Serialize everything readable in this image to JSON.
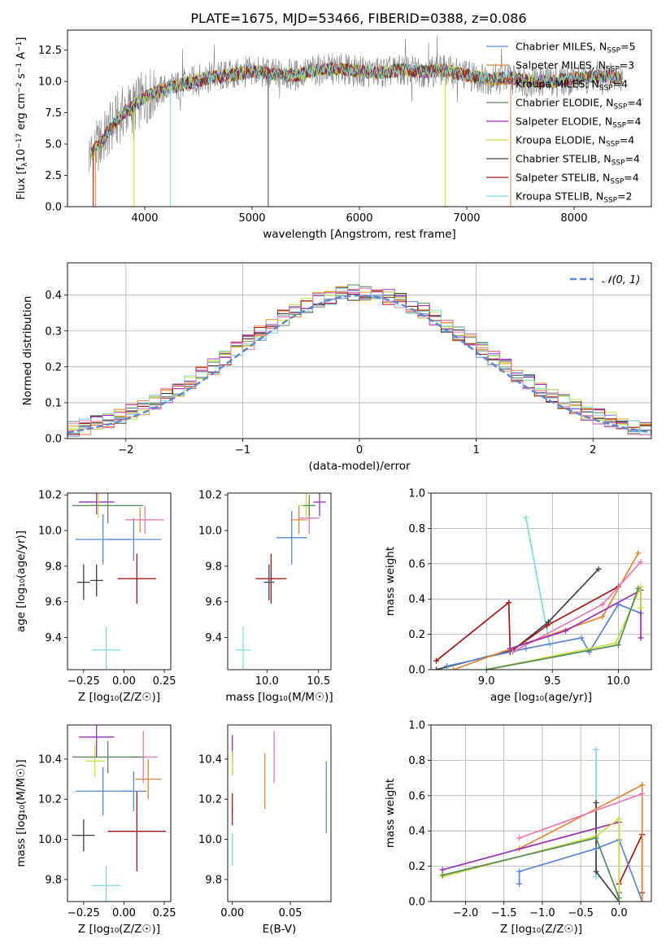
{
  "figure": {
    "title": "PLATE=1675, MJD=53466, FIBERID=0388, z=0.086"
  },
  "colors": {
    "chabrier_miles": "#5b86d6",
    "salpeter_miles": "#e6863a",
    "kroupa_miles": "#e0a020",
    "chabrier_elodie": "#5a8a5a",
    "salpeter_elodie": "#9b30b8",
    "kroupa_elodie": "#c8e040",
    "chabrier_stelib": "#404040",
    "salpeter_stelib": "#a01818",
    "kroupa_stelib": "#7fdada",
    "data": "#808080",
    "pink": "#e87ab8",
    "normal": "#5b86d6"
  },
  "chart_data": [
    {
      "id": "spectrum",
      "type": "line",
      "xlabel": "wavelength [Angstrom, rest frame]",
      "ylabel_parts": {
        "base": "Flux [f",
        "sub": "λ",
        "mid": "10",
        "sup1": "−17",
        "rest": " erg cm",
        "sup2": "−2",
        "s": " s",
        "sup3": "−1",
        "a": " A",
        "sup4": "−1",
        "end": "]"
      },
      "xlim": [
        3280,
        8720
      ],
      "ylim": [
        0,
        14.1
      ],
      "xticks": [
        4000,
        5000,
        6000,
        7000,
        8000
      ],
      "yticks": [
        0.0,
        2.5,
        5.0,
        7.5,
        10.0,
        12.5
      ],
      "ytick_labels": [
        "0.0",
        "2.5",
        "5.0",
        "7.5",
        "10.0",
        "12.5"
      ],
      "continuum": [
        [
          3500,
          4.2
        ],
        [
          3600,
          5.2
        ],
        [
          3700,
          6.5
        ],
        [
          3800,
          7.5
        ],
        [
          3900,
          8.0
        ],
        [
          4000,
          8.8
        ],
        [
          4200,
          9.4
        ],
        [
          4400,
          9.9
        ],
        [
          4600,
          10.3
        ],
        [
          4800,
          10.5
        ],
        [
          5000,
          10.8
        ],
        [
          5200,
          10.6
        ],
        [
          5400,
          10.5
        ],
        [
          5600,
          10.9
        ],
        [
          5800,
          11.0
        ],
        [
          6000,
          10.8
        ],
        [
          6200,
          10.7
        ],
        [
          6400,
          10.9
        ],
        [
          6600,
          10.8
        ],
        [
          6800,
          10.9
        ],
        [
          7000,
          10.5
        ],
        [
          7200,
          10.2
        ],
        [
          7400,
          10.3
        ],
        [
          7600,
          10.0
        ],
        [
          7800,
          10.0
        ],
        [
          8000,
          10.2
        ],
        [
          8200,
          10.4
        ],
        [
          8400,
          10.3
        ]
      ],
      "legend": [
        {
          "label": "Chabrier MILES, N",
          "sub": "SSP",
          "tail": "=5",
          "color": "#5b86d6"
        },
        {
          "label": "Salpeter MILES, N",
          "sub": "SSP",
          "tail": "=3",
          "color": "#e6863a"
        },
        {
          "label": "Kroupa MILES, N",
          "sub": "SSP",
          "tail": "=4",
          "color": "#e0a020"
        },
        {
          "label": "Chabrier ELODIE, N",
          "sub": "SSP",
          "tail": "=4",
          "color": "#5a8a5a"
        },
        {
          "label": "Salpeter ELODIE, N",
          "sub": "SSP",
          "tail": "=4",
          "color": "#9b30b8"
        },
        {
          "label": "Kroupa ELODIE, N",
          "sub": "SSP",
          "tail": "=4",
          "color": "#c8e040"
        },
        {
          "label": "Chabrier STELIB, N",
          "sub": "SSP",
          "tail": "=4",
          "color": "#404040"
        },
        {
          "label": "Salpeter STELIB, N",
          "sub": "SSP",
          "tail": "=4",
          "color": "#a01818"
        },
        {
          "label": "Kroupa STELIB, N",
          "sub": "SSP",
          "tail": "=2",
          "color": "#7fdada"
        }
      ],
      "legend_placement": "upper right"
    },
    {
      "id": "residuals",
      "type": "histogram",
      "xlabel": "(data-model)/error",
      "ylabel": "Normed distribution",
      "xlim": [
        -2.5,
        2.5
      ],
      "ylim": [
        0,
        0.49
      ],
      "xticks": [
        -2,
        -1,
        0,
        1,
        2
      ],
      "xtick_labels": [
        "−2",
        "−1",
        "0",
        "1",
        "2"
      ],
      "yticks": [
        0.0,
        0.1,
        0.2,
        0.3,
        0.4
      ],
      "ytick_labels": [
        "0.0",
        "0.1",
        "0.2",
        "0.3",
        "0.4"
      ],
      "grid": true,
      "bin_width": 0.1,
      "legend": [
        {
          "label": "𝒩(0, 1)",
          "color": "#5b86d6",
          "style": "dashed"
        }
      ],
      "legend_placement": "upper right"
    },
    {
      "id": "age_vs_Z",
      "type": "errorbar",
      "xlabel": "Z [log₁₀(Z/Z☉)]",
      "ylabel": "age  [log₁₀(age/yr)]",
      "xlim": [
        -0.35,
        0.29
      ],
      "ylim": [
        9.22,
        10.21
      ],
      "xticks": [
        -0.25,
        0.0,
        0.25
      ],
      "xtick_labels": [
        "−0.25",
        "0.00",
        "0.25"
      ],
      "yticks": [
        9.4,
        9.6,
        9.8,
        10.0,
        10.2
      ],
      "ytick_labels": [
        "9.4",
        "9.6",
        "9.8",
        "10.0",
        "10.2"
      ],
      "points": [
        {
          "x": 0.08,
          "y": 9.73,
          "xerr": 0.12,
          "yerr": 0.14,
          "color": "#a01818"
        },
        {
          "x": -0.25,
          "y": 9.71,
          "xerr": 0.04,
          "yerr": 0.1,
          "color": "#404040"
        },
        {
          "x": -0.17,
          "y": 9.72,
          "xerr": 0.04,
          "yerr": 0.09,
          "color": "#404040"
        },
        {
          "x": -0.11,
          "y": 9.33,
          "xerr": 0.09,
          "yerr": 0.13,
          "color": "#7fdada"
        },
        {
          "x": -0.13,
          "y": 9.95,
          "xerr": 0.17,
          "yerr": 0.14,
          "color": "#5b86d6"
        },
        {
          "x": 0.06,
          "y": 9.95,
          "xerr": 0.17,
          "yerr": 0.12,
          "color": "#5b86d6"
        },
        {
          "x": 0.1,
          "y": 10.06,
          "xerr": 0.09,
          "yerr": 0.07,
          "color": "#e6863a"
        },
        {
          "x": 0.13,
          "y": 10.06,
          "xerr": 0.12,
          "yerr": 0.08,
          "color": "#e87ab8"
        },
        {
          "x": -0.17,
          "y": 10.16,
          "xerr": 0.11,
          "yerr": 0.07,
          "color": "#9b30b8"
        },
        {
          "x": -0.16,
          "y": 10.14,
          "xerr": 0.08,
          "yerr": 0.07,
          "color": "#c8e040"
        },
        {
          "x": -0.1,
          "y": 10.14,
          "xerr": 0.22,
          "yerr": 0.1,
          "color": "#5a8a5a"
        }
      ]
    },
    {
      "id": "age_vs_mass",
      "type": "errorbar",
      "xlabel": "mass [log₁₀(M/M☉)]",
      "ylabel": "",
      "xlim": [
        9.62,
        10.62
      ],
      "ylim": [
        9.22,
        10.21
      ],
      "xticks": [
        10.0,
        10.5
      ],
      "xtick_labels": [
        "10.0",
        "10.5"
      ],
      "yticks": [
        9.4,
        9.6,
        9.8,
        10.0,
        10.2
      ],
      "ytick_labels": [
        "9.4",
        "9.6",
        "9.8",
        "10.0",
        "10.2"
      ],
      "points": [
        {
          "x": 10.04,
          "y": 9.73,
          "xerr": 0.15,
          "yerr": 0.14,
          "color": "#a01818"
        },
        {
          "x": 10.02,
          "y": 9.71,
          "xerr": 0.05,
          "yerr": 0.1,
          "color": "#404040"
        },
        {
          "x": 9.77,
          "y": 9.33,
          "xerr": 0.07,
          "yerr": 0.13,
          "color": "#7fdada"
        },
        {
          "x": 10.24,
          "y": 9.96,
          "xerr": 0.15,
          "yerr": 0.15,
          "color": "#5b86d6"
        },
        {
          "x": 10.31,
          "y": 10.06,
          "xerr": 0.08,
          "yerr": 0.08,
          "color": "#e6863a"
        },
        {
          "x": 10.41,
          "y": 10.07,
          "xerr": 0.1,
          "yerr": 0.09,
          "color": "#e87ab8"
        },
        {
          "x": 10.51,
          "y": 10.16,
          "xerr": 0.06,
          "yerr": 0.08,
          "color": "#9b30b8"
        },
        {
          "x": 10.38,
          "y": 10.14,
          "xerr": 0.06,
          "yerr": 0.07,
          "color": "#c8e040"
        },
        {
          "x": 10.41,
          "y": 10.14,
          "xerr": 0.06,
          "yerr": 0.06,
          "color": "#5a8a5a"
        }
      ]
    },
    {
      "id": "weight_vs_age",
      "type": "line",
      "xlabel": "age  [log₁₀(age/yr)]",
      "ylabel": "mass weight",
      "xlim": [
        8.58,
        10.25
      ],
      "ylim": [
        0,
        1.0
      ],
      "xticks": [
        9.0,
        9.5,
        10.0
      ],
      "xtick_labels": [
        "9.0",
        "9.5",
        "10.0"
      ],
      "yticks": [
        0.0,
        0.2,
        0.4,
        0.6,
        0.8,
        1.0
      ],
      "ytick_labels": [
        "0.0",
        "0.2",
        "0.4",
        "0.6",
        "0.8",
        "1.0"
      ],
      "grid": true,
      "series": [
        {
          "color": "#7fdada",
          "points": [
            [
              9.3,
              0.86
            ],
            [
              9.48,
              0.14
            ]
          ]
        },
        {
          "color": "#404040",
          "points": [
            [
              8.62,
              0.0
            ],
            [
              9.2,
              0.11
            ],
            [
              9.47,
              0.27
            ],
            [
              9.85,
              0.57
            ]
          ]
        },
        {
          "color": "#a01818",
          "points": [
            [
              8.62,
              0.05
            ],
            [
              9.17,
              0.38
            ],
            [
              9.18,
              0.1
            ],
            [
              9.46,
              0.25
            ],
            [
              10.0,
              0.47
            ]
          ]
        },
        {
          "color": "#5b86d6",
          "points": [
            [
              8.7,
              0.02
            ],
            [
              9.3,
              0.12
            ],
            [
              9.72,
              0.18
            ],
            [
              9.78,
              0.1
            ],
            [
              10.0,
              0.37
            ],
            [
              10.17,
              0.32
            ]
          ]
        },
        {
          "color": "#e6863a",
          "points": [
            [
              8.75,
              0.0
            ],
            [
              9.3,
              0.15
            ],
            [
              9.88,
              0.3
            ],
            [
              10.15,
              0.66
            ]
          ]
        },
        {
          "color": "#e87ab8",
          "points": [
            [
              9.2,
              0.1
            ],
            [
              9.88,
              0.37
            ],
            [
              10.17,
              0.61
            ]
          ]
        },
        {
          "color": "#9b30b8",
          "points": [
            [
              9.18,
              0.12
            ],
            [
              9.6,
              0.22
            ],
            [
              10.17,
              0.45
            ],
            [
              10.17,
              0.18
            ]
          ]
        },
        {
          "color": "#c8e040",
          "points": [
            [
              9.0,
              0.0
            ],
            [
              9.98,
              0.15
            ],
            [
              10.17,
              0.47
            ],
            [
              10.17,
              0.35
            ]
          ]
        },
        {
          "color": "#5a8a5a",
          "points": [
            [
              9.0,
              0.0
            ],
            [
              10.0,
              0.14
            ],
            [
              10.15,
              0.46
            ]
          ]
        }
      ]
    },
    {
      "id": "mass_vs_Z",
      "type": "errorbar",
      "xlabel": "Z [log₁₀(Z/Z☉)]",
      "ylabel": "mass [log₁₀(M/M☉)]",
      "xlim": [
        -0.35,
        0.29
      ],
      "ylim": [
        9.69,
        10.57
      ],
      "xticks": [
        -0.25,
        0.0,
        0.25
      ],
      "xtick_labels": [
        "−0.25",
        "0.00",
        "0.25"
      ],
      "yticks": [
        9.8,
        10.0,
        10.2,
        10.4
      ],
      "ytick_labels": [
        "9.8",
        "10.0",
        "10.2",
        "10.4"
      ],
      "points": [
        {
          "x": 0.08,
          "y": 10.04,
          "xerr": 0.18,
          "yerr": 0.2,
          "color": "#a01818"
        },
        {
          "x": -0.25,
          "y": 10.02,
          "xerr": 0.07,
          "yerr": 0.08,
          "color": "#404040"
        },
        {
          "x": -0.11,
          "y": 9.77,
          "xerr": 0.09,
          "yerr": 0.1,
          "color": "#7fdada"
        },
        {
          "x": -0.13,
          "y": 10.24,
          "xerr": 0.17,
          "yerr": 0.12,
          "color": "#5b86d6"
        },
        {
          "x": 0.06,
          "y": 10.24,
          "xerr": 0.08,
          "yerr": 0.1,
          "color": "#5b86d6"
        },
        {
          "x": 0.15,
          "y": 10.3,
          "xerr": 0.08,
          "yerr": 0.1,
          "color": "#e6863a"
        },
        {
          "x": 0.12,
          "y": 10.41,
          "xerr": 0.09,
          "yerr": 0.13,
          "color": "#e87ab8"
        },
        {
          "x": -0.17,
          "y": 10.51,
          "xerr": 0.11,
          "yerr": 0.1,
          "color": "#9b30b8"
        },
        {
          "x": -0.18,
          "y": 10.39,
          "xerr": 0.06,
          "yerr": 0.08,
          "color": "#c8e040"
        },
        {
          "x": -0.1,
          "y": 10.41,
          "xerr": 0.22,
          "yerr": 0.08,
          "color": "#5a8a5a"
        }
      ]
    },
    {
      "id": "mass_vs_ebv",
      "type": "errorbar",
      "xlabel": "E(B-V)",
      "ylabel": "",
      "xlim": [
        -0.004,
        0.085
      ],
      "ylim": [
        9.69,
        10.57
      ],
      "xticks": [
        0.0,
        0.05
      ],
      "xtick_labels": [
        "0.00",
        "0.05"
      ],
      "yticks": [
        9.8,
        10.0,
        10.2,
        10.4
      ],
      "ytick_labels": [
        "9.8",
        "10.0",
        "10.2",
        "10.4"
      ],
      "points": [
        {
          "x": 0.0,
          "y": 10.15,
          "xerr": 0.0005,
          "yerr": 0.08,
          "color": "#a01818"
        },
        {
          "x": 0.0,
          "y": 9.95,
          "xerr": 0.0005,
          "yerr": 0.08,
          "color": "#7fdada"
        },
        {
          "x": 0.0,
          "y": 10.42,
          "xerr": 0.0005,
          "yerr": 0.1,
          "color": "#9b30b8"
        },
        {
          "x": 0.0,
          "y": 10.38,
          "xerr": 0.0005,
          "yerr": 0.06,
          "color": "#c8e040"
        },
        {
          "x": 0.028,
          "y": 10.29,
          "xerr": 0.0005,
          "yerr": 0.14,
          "color": "#e6863a"
        },
        {
          "x": 0.036,
          "y": 10.41,
          "xerr": 0.0005,
          "yerr": 0.13,
          "color": "#e87ab8"
        },
        {
          "x": 0.081,
          "y": 10.21,
          "xerr": 0.0005,
          "yerr": 0.18,
          "color": "#5b86d6"
        }
      ]
    },
    {
      "id": "weight_vs_Z",
      "type": "line",
      "xlabel": "Z [log₁₀(Z/Z☉)]",
      "ylabel": "mass weight",
      "xlim": [
        -2.45,
        0.42
      ],
      "ylim": [
        0,
        1.0
      ],
      "xticks": [
        -2.0,
        -1.5,
        -1.0,
        -0.5,
        0.0
      ],
      "xtick_labels": [
        "−2.0",
        "−1.5",
        "−1.0",
        "−0.5",
        "0.0"
      ],
      "yticks": [
        0.0,
        0.2,
        0.4,
        0.6,
        0.8,
        1.0
      ],
      "ytick_labels": [
        "0.0",
        "0.2",
        "0.4",
        "0.6",
        "0.8",
        "1.0"
      ],
      "grid": true,
      "series": [
        {
          "color": "#7fdada",
          "points": [
            [
              -0.3,
              0.86
            ],
            [
              -0.3,
              0.14
            ]
          ]
        },
        {
          "color": "#404040",
          "points": [
            [
              -0.3,
              0.56
            ],
            [
              -0.3,
              0.17
            ],
            [
              0.0,
              0.0
            ]
          ]
        },
        {
          "color": "#a01818",
          "points": [
            [
              0.0,
              0.1
            ],
            [
              0.3,
              0.38
            ],
            [
              0.3,
              0.05
            ]
          ]
        },
        {
          "color": "#5b86d6",
          "points": [
            [
              -1.3,
              0.1
            ],
            [
              -1.3,
              0.17
            ],
            [
              -0.3,
              0.3
            ],
            [
              0.0,
              0.35
            ],
            [
              0.3,
              0.0
            ]
          ]
        },
        {
          "color": "#e6863a",
          "points": [
            [
              -1.3,
              0.3
            ],
            [
              0.3,
              0.66
            ],
            [
              0.3,
              0.0
            ]
          ]
        },
        {
          "color": "#e87ab8",
          "points": [
            [
              -1.3,
              0.36
            ],
            [
              0.3,
              0.61
            ]
          ]
        },
        {
          "color": "#9b30b8",
          "points": [
            [
              -2.3,
              0.18
            ],
            [
              0.0,
              0.45
            ],
            [
              0.0,
              0.05
            ]
          ]
        },
        {
          "color": "#c8e040",
          "points": [
            [
              -2.3,
              0.14
            ],
            [
              -0.3,
              0.37
            ],
            [
              0.0,
              0.47
            ],
            [
              0.0,
              0.0
            ]
          ]
        },
        {
          "color": "#5a8a5a",
          "points": [
            [
              -2.3,
              0.15
            ],
            [
              -0.3,
              0.36
            ],
            [
              0.0,
              0.02
            ]
          ]
        }
      ]
    }
  ]
}
